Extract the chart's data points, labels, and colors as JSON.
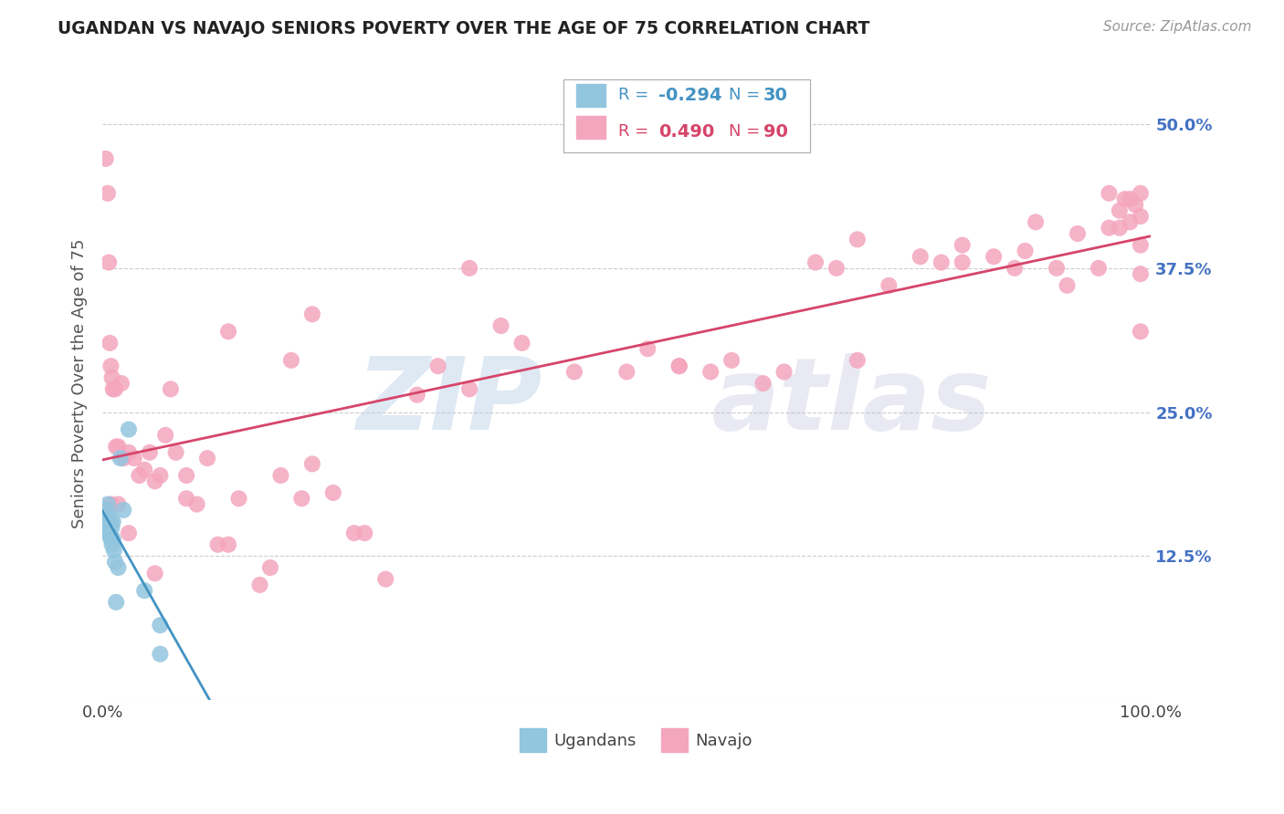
{
  "title": "UGANDAN VS NAVAJO SENIORS POVERTY OVER THE AGE OF 75 CORRELATION CHART",
  "source": "Source: ZipAtlas.com",
  "ylabel": "Seniors Poverty Over the Age of 75",
  "watermark": "ZIPatlas",
  "xlim": [
    0.0,
    1.0
  ],
  "ylim": [
    0.0,
    0.55
  ],
  "yticks": [
    0.0,
    0.125,
    0.25,
    0.375,
    0.5
  ],
  "ytick_labels": [
    "",
    "12.5%",
    "25.0%",
    "37.5%",
    "50.0%"
  ],
  "ugandan_R": -0.294,
  "ugandan_N": 30,
  "navajo_R": 0.49,
  "navajo_N": 90,
  "ugandan_color": "#92c5de",
  "navajo_color": "#f4a6be",
  "ugandan_line_color": "#4393c3",
  "navajo_line_color": "#d6456a",
  "background_color": "#ffffff",
  "grid_color": "#cccccc",
  "title_color": "#222222",
  "axis_label_color": "#555555",
  "legend_blue": "#4393c3",
  "legend_pink": "#d6456a",
  "right_tick_color": "#4472c4",
  "ugandan_x": [
    0.003,
    0.003,
    0.004,
    0.004,
    0.004,
    0.005,
    0.005,
    0.005,
    0.005,
    0.006,
    0.006,
    0.006,
    0.007,
    0.007,
    0.008,
    0.008,
    0.009,
    0.009,
    0.01,
    0.01,
    0.011,
    0.012,
    0.013,
    0.015,
    0.017,
    0.02,
    0.025,
    0.04,
    0.055,
    0.055
  ],
  "ugandan_y": [
    0.165,
    0.155,
    0.16,
    0.15,
    0.145,
    0.17,
    0.16,
    0.155,
    0.15,
    0.16,
    0.155,
    0.145,
    0.155,
    0.145,
    0.155,
    0.14,
    0.15,
    0.135,
    0.155,
    0.14,
    0.13,
    0.12,
    0.085,
    0.115,
    0.21,
    0.165,
    0.235,
    0.095,
    0.065,
    0.04
  ],
  "navajo_x": [
    0.003,
    0.005,
    0.006,
    0.007,
    0.008,
    0.009,
    0.01,
    0.012,
    0.013,
    0.015,
    0.018,
    0.02,
    0.025,
    0.03,
    0.035,
    0.04,
    0.045,
    0.05,
    0.055,
    0.06,
    0.065,
    0.07,
    0.08,
    0.09,
    0.1,
    0.11,
    0.12,
    0.13,
    0.15,
    0.16,
    0.17,
    0.18,
    0.19,
    0.2,
    0.22,
    0.24,
    0.25,
    0.27,
    0.3,
    0.32,
    0.35,
    0.38,
    0.4,
    0.45,
    0.5,
    0.52,
    0.55,
    0.58,
    0.6,
    0.63,
    0.65,
    0.68,
    0.7,
    0.72,
    0.75,
    0.78,
    0.8,
    0.82,
    0.85,
    0.87,
    0.89,
    0.91,
    0.93,
    0.95,
    0.96,
    0.97,
    0.975,
    0.98,
    0.985,
    0.99,
    0.008,
    0.015,
    0.025,
    0.05,
    0.08,
    0.12,
    0.2,
    0.35,
    0.55,
    0.72,
    0.82,
    0.88,
    0.92,
    0.96,
    0.97,
    0.98,
    0.99,
    0.99,
    0.99,
    0.99
  ],
  "navajo_y": [
    0.47,
    0.44,
    0.38,
    0.31,
    0.29,
    0.28,
    0.27,
    0.27,
    0.22,
    0.22,
    0.275,
    0.21,
    0.215,
    0.21,
    0.195,
    0.2,
    0.215,
    0.19,
    0.195,
    0.23,
    0.27,
    0.215,
    0.175,
    0.17,
    0.21,
    0.135,
    0.135,
    0.175,
    0.1,
    0.115,
    0.195,
    0.295,
    0.175,
    0.205,
    0.18,
    0.145,
    0.145,
    0.105,
    0.265,
    0.29,
    0.27,
    0.325,
    0.31,
    0.285,
    0.285,
    0.305,
    0.29,
    0.285,
    0.295,
    0.275,
    0.285,
    0.38,
    0.375,
    0.295,
    0.36,
    0.385,
    0.38,
    0.395,
    0.385,
    0.375,
    0.415,
    0.375,
    0.405,
    0.375,
    0.41,
    0.41,
    0.435,
    0.415,
    0.43,
    0.44,
    0.17,
    0.17,
    0.145,
    0.11,
    0.195,
    0.32,
    0.335,
    0.375,
    0.29,
    0.4,
    0.38,
    0.39,
    0.36,
    0.44,
    0.425,
    0.435,
    0.42,
    0.395,
    0.37,
    0.32
  ]
}
